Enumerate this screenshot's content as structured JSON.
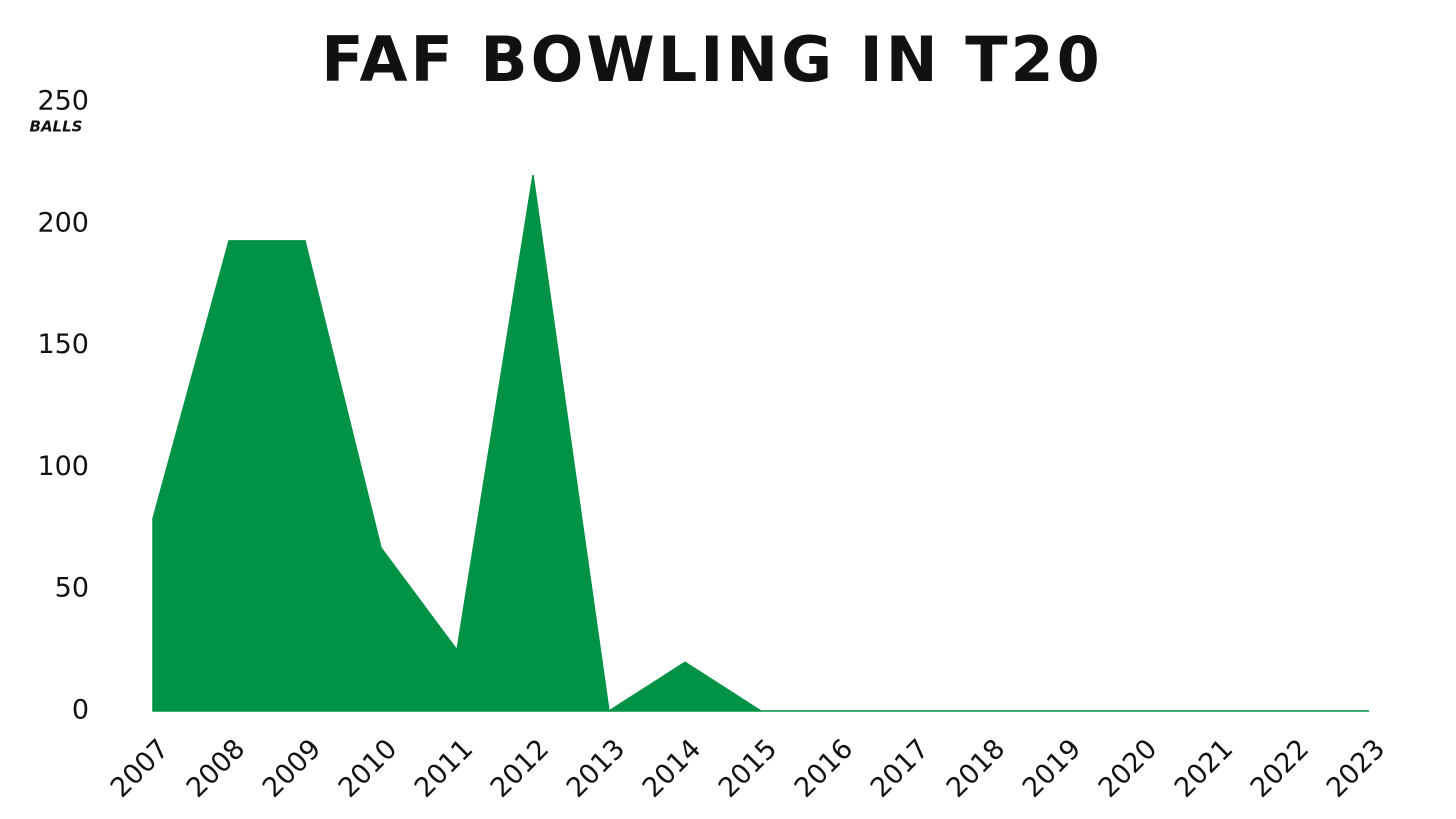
{
  "chart_data": {
    "type": "area",
    "title": "FAF BOWLING IN T20",
    "y_label": "BALLS",
    "categories": [
      "2007",
      "2008",
      "2009",
      "2010",
      "2011",
      "2012",
      "2013",
      "2014",
      "2015",
      "2016",
      "2017",
      "2018",
      "2019",
      "2020",
      "2021",
      "2022",
      "2023"
    ],
    "values": [
      79,
      193,
      193,
      67,
      25,
      220,
      0,
      20,
      0,
      0,
      0,
      0,
      0,
      0,
      0,
      0,
      0
    ],
    "color": "#009245",
    "ylim": [
      0,
      250
    ],
    "yticks": [
      0,
      50,
      100,
      150,
      200,
      250
    ],
    "grid": false
  }
}
